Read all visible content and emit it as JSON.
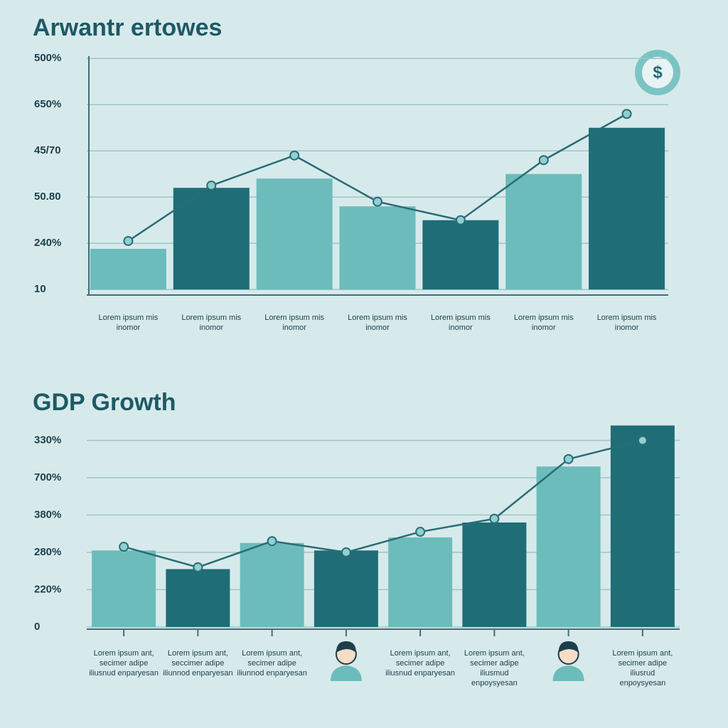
{
  "chart_data": [
    {
      "type": "bar",
      "title": "Arwantr ertowes",
      "categories": [
        "Lorem ipsum mis inomor",
        "Lorem ipsum mis inomor",
        "Lorem ipsum mis inomor",
        "Lorem ipsum mis inomor",
        "Lorem ipsum mis inomor",
        "Lorem ipsum mis inomor",
        "Lorem ipsum mis inomor"
      ],
      "values": [
        0.88,
        2.2,
        2.4,
        1.8,
        1.5,
        2.5,
        3.5
      ],
      "colors": [
        "#6cbcbc",
        "#1f6d77",
        "#6cbcbc",
        "#6cbcbc",
        "#1f6d77",
        "#6cbcbc",
        "#1f6d77"
      ],
      "line_values": [
        1.05,
        2.25,
        2.9,
        1.9,
        1.5,
        2.8,
        3.8
      ],
      "line_color": "#2a6c76",
      "ylim": [
        -0.12,
        5.05
      ],
      "yticks": [
        {
          "value": 0,
          "label": "10"
        },
        {
          "value": 1,
          "label": "240%"
        },
        {
          "value": 2,
          "label": "50.80"
        },
        {
          "value": 3,
          "label": "45/70"
        },
        {
          "value": 4,
          "label": "650%"
        },
        {
          "value": 5,
          "label": "500%"
        }
      ],
      "grid": true,
      "icon": "$"
    },
    {
      "type": "bar",
      "title": "GDP Growth",
      "categories": [
        "Lorem ipsum ant, secimer adipe iliusnud enparyesan",
        "Lorem ipsum ant, seccimer adipe iliunnod enparyesan",
        "Lorem ipsum ant, secimer adipe iliunnod enparyesan",
        null,
        "Lorem ipsum ant, secimer adipe iliusnud enparyesan",
        "Lorem ipsum ant, secimer adipe iliusmud enpoysyesan",
        null,
        "Lorem ipsum ant, secimer adipe iliusrud enpoysyesan"
      ],
      "values": [
        2.05,
        1.55,
        2.25,
        2.05,
        2.4,
        2.8,
        4.3,
        5.4
      ],
      "colors": [
        "#6cbcbc",
        "#1f6d77",
        "#6cbcbc",
        "#1f6d77",
        "#6cbcbc",
        "#1f6d77",
        "#6cbcbc",
        "#1f6d77"
      ],
      "line_values": [
        2.15,
        1.6,
        2.3,
        2.0,
        2.55,
        2.9,
        4.5,
        5.0
      ],
      "line_color": "#2a6c76",
      "ylim": [
        -0.06,
        5.6
      ],
      "yticks": [
        0,
        {
          "value": 1,
          "label": "220%"
        },
        {
          "value": 2,
          "label": "280%"
        },
        {
          "value": 3,
          "label": "380%"
        },
        {
          "value": 4,
          "label": "700%"
        },
        {
          "value": 5,
          "label": "330%"
        }
      ],
      "grid": true
    }
  ]
}
